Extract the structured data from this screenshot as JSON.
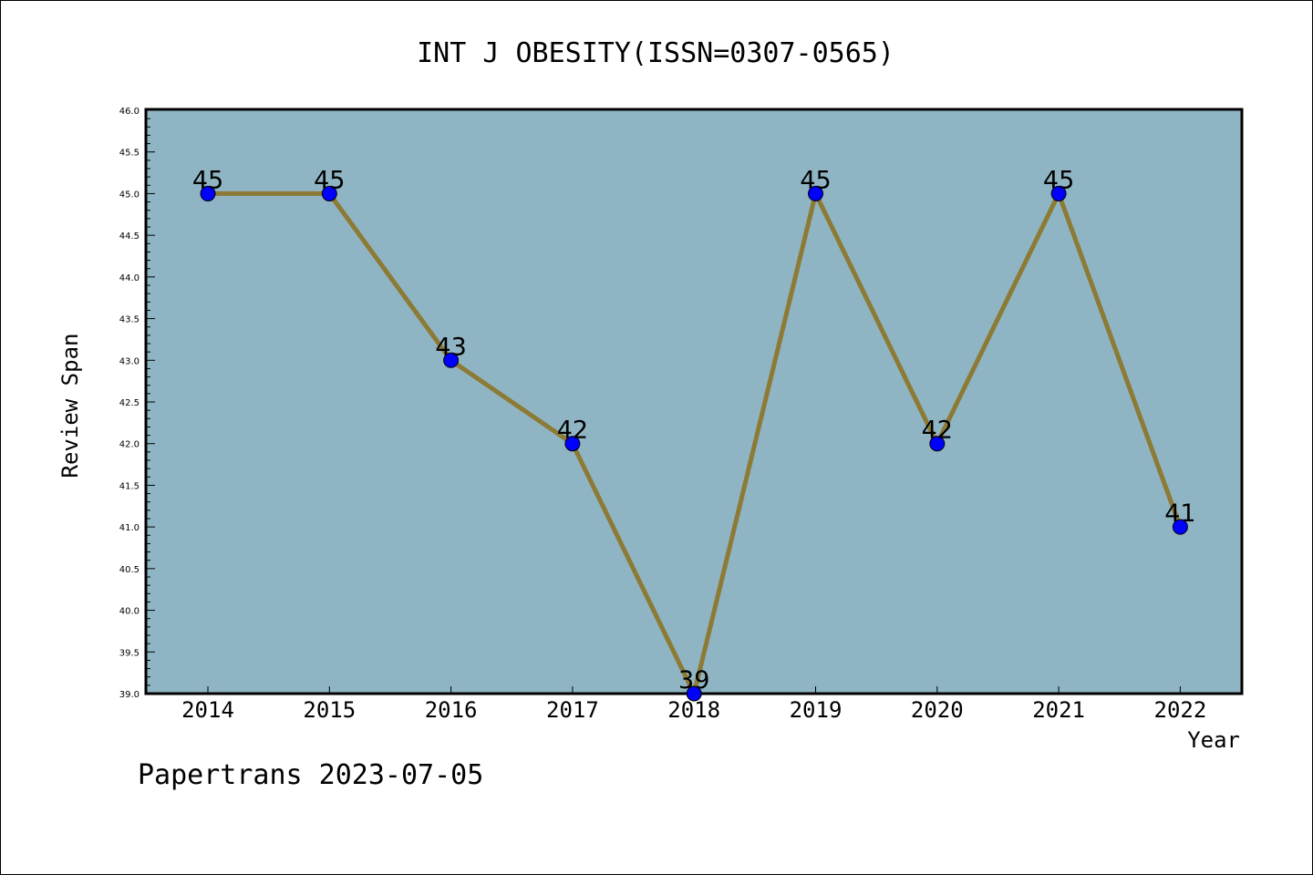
{
  "footer": "Papertrans 2023-07-05",
  "colors": {
    "plot_background": "#8fb5c4",
    "line": "#8c7a35",
    "marker": "#0000ff",
    "axis": "#000000"
  },
  "chart_data": {
    "type": "line",
    "title": "INT J OBESITY(ISSN=0307-0565)",
    "xlabel": "Year",
    "ylabel": "Review Span",
    "categories": [
      "2014",
      "2015",
      "2016",
      "2017",
      "2018",
      "2019",
      "2020",
      "2021",
      "2022"
    ],
    "series": [
      {
        "values": [
          45,
          45,
          43,
          42,
          39,
          45,
          42,
          45,
          41
        ]
      }
    ],
    "data_labels": [
      "45",
      "45",
      "43",
      "42",
      "39",
      "45",
      "42",
      "45",
      "41"
    ],
    "ylim": [
      39.0,
      46.0
    ],
    "y_ticks": [
      "39.0",
      "39.5",
      "40.0",
      "40.5",
      "41.0",
      "41.5",
      "42.0",
      "42.5",
      "43.0",
      "43.5",
      "44.0",
      "44.5",
      "45.0",
      "45.5",
      "46.0"
    ],
    "grid": false,
    "legend": "none"
  }
}
